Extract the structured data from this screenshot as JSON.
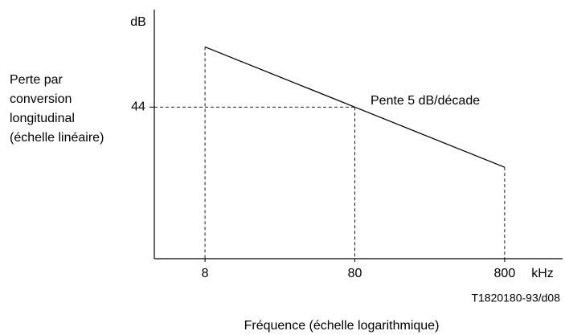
{
  "chart_data": {
    "type": "line",
    "y_unit": "dB",
    "x_unit": "kHz",
    "ylabel_lines": [
      "Perte par",
      "conversion",
      "longitudinal",
      "(échelle linéaire)"
    ],
    "xlabel": "Fréquence (échelle logarithmique)",
    "annotation": "Pente 5 dB/décade",
    "reference": "T1820180-93/d08",
    "x": [
      8,
      80,
      800
    ],
    "values": [
      49,
      44,
      39
    ],
    "color": "#000000",
    "xlog": true,
    "xlim": [
      3.67,
      1950
    ],
    "xticks": [
      8,
      80,
      800
    ],
    "ylim": [
      31.4,
      52.1
    ],
    "yticks": [
      44
    ]
  }
}
